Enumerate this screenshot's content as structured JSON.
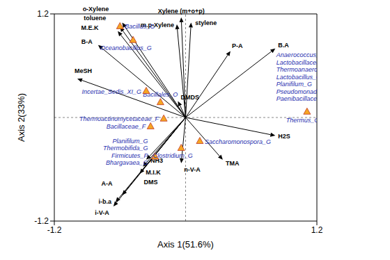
{
  "chart_data": {
    "type": "biplot",
    "x_label": "Axis 1(51.6%)",
    "y_label": "Axis 2(33%)",
    "xlim": [
      -1.2,
      1.2
    ],
    "ylim": [
      -1.2,
      1.2
    ],
    "xticks": [
      -1.2,
      1.2
    ],
    "yticks": [
      -1.2,
      1.2
    ],
    "vectors": {
      "color": "#000000",
      "points": [
        {
          "label": "o-Xylene",
          "x": -0.58,
          "y": 1.1
        },
        {
          "label": "toluene",
          "x": -0.6,
          "y": 1.05
        },
        {
          "label": "M.E.K",
          "x": -0.62,
          "y": 1.0
        },
        {
          "label": "B-A",
          "x": -0.8,
          "y": 0.84
        },
        {
          "label": "Xylene (m+o+p)",
          "x": -0.04,
          "y": 1.16
        },
        {
          "label": "m.p-Xylene",
          "x": -0.08,
          "y": 1.08
        },
        {
          "label": "stylene",
          "x": 0.05,
          "y": 1.1
        },
        {
          "label": "P-A",
          "x": 0.41,
          "y": 0.77
        },
        {
          "label": "B.A",
          "x": 0.82,
          "y": 0.8
        },
        {
          "label": "H2S",
          "x": 0.82,
          "y": -0.21
        },
        {
          "label": "TMA",
          "x": 0.34,
          "y": -0.49
        },
        {
          "label": "n-V-A",
          "x": -0.04,
          "y": -0.53
        },
        {
          "label": "DMDS",
          "x": -0.07,
          "y": 0.19
        },
        {
          "label": "MeSH",
          "x": -0.99,
          "y": 0.45
        },
        {
          "label": "NH3",
          "x": -0.36,
          "y": -0.49
        },
        {
          "label": "M.I.K",
          "x": -0.39,
          "y": -0.57
        },
        {
          "label": "DMS",
          "x": -0.42,
          "y": -0.65
        },
        {
          "label": "A-A",
          "x": -0.58,
          "y": -0.9
        },
        {
          "label": "i-b.a",
          "x": -0.64,
          "y": -0.98
        },
        {
          "label": "i-V-A",
          "x": -0.66,
          "y": -1.03
        }
      ]
    },
    "species": {
      "color": "#f5a623",
      "marker": "triangle",
      "points": [
        {
          "labels": [
            "Bacillus_G"
          ],
          "x": -0.6,
          "y": 1.06
        },
        {
          "labels": [
            "Oceanobacillus_G"
          ],
          "x": -0.48,
          "y": 0.9
        },
        {
          "labels": [
            "Bacillales_O"
          ],
          "x": -0.23,
          "y": 0.18
        },
        {
          "labels": [
            "Incertae_Sedis_XI_G"
          ],
          "x": -0.36,
          "y": 0.31
        },
        {
          "labels": [
            "Thermoactinomycetaceae_F"
          ],
          "x": -0.2,
          "y": -0.01
        },
        {
          "labels": [
            "Bacillaceae_F"
          ],
          "x": -0.32,
          "y": -0.1
        },
        {
          "labels": [
            "Planifilum_G",
            "Thermobifida_G",
            "Firmicutes_P",
            "Bhargavaea_G"
          ],
          "x": -0.28,
          "y": -0.45
        },
        {
          "labels": [
            "Clostridium_G"
          ],
          "x": -0.04,
          "y": -0.35
        },
        {
          "labels": [
            "Saccharomonospora_G"
          ],
          "x": 0.13,
          "y": -0.27
        },
        {
          "labels": [
            "Anaerococcus_G",
            "Lactobacillaceae_F",
            "Thermoanaerobacteraceae_F",
            "Lactobacillus_G",
            "Planifilum_G",
            "Pseudomonadaceae_F",
            "Paenibacillaceae_F",
            "Thermus_G"
          ],
          "x": 1.11,
          "y": 0.07
        }
      ]
    }
  }
}
